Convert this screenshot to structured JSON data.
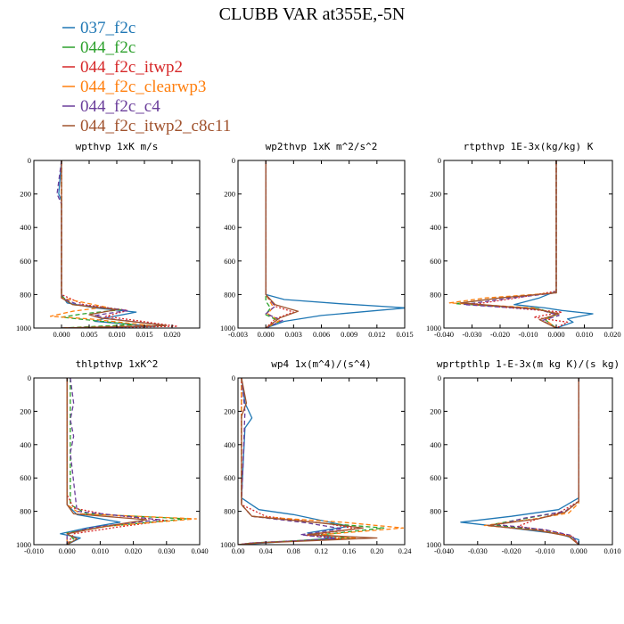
{
  "figure": {
    "title": "CLUBB VAR at355E,-5N"
  },
  "legend": [
    {
      "name": "037_f2c",
      "color": "#1f77b4",
      "dash": "solid"
    },
    {
      "name": "044_f2c",
      "color": "#2ca02c",
      "dash": "dash"
    },
    {
      "name": "044_f2c_itwp2",
      "color": "#d62728",
      "dash": "dot"
    },
    {
      "name": "044_f2c_clearwp3",
      "color": "#ff7f0e",
      "dash": "dash"
    },
    {
      "name": "044_f2c_c4",
      "color": "#6a3d9a",
      "dash": "dash"
    },
    {
      "name": "044_f2c_itwp2_c8c11",
      "color": "#a0522d",
      "dash": "solid"
    }
  ],
  "chart_data": [
    {
      "type": "line",
      "title": "wpthvp  1xK m/s",
      "ylim": [
        1000,
        0
      ],
      "yticks": [
        "0",
        "200",
        "400",
        "600",
        "800",
        "1000"
      ],
      "xlim": [
        -0.005,
        0.025
      ],
      "xticks": [
        "0.000",
        "0.005",
        "0.010",
        "0.015",
        "0.020"
      ],
      "series": [
        {
          "name": "037_f2c",
          "x": [
            0.0,
            -0.0005,
            0.0,
            0.0,
            0.001,
            0.006,
            0.0135,
            0.008,
            0.006,
            0.017,
            0.0
          ],
          "y": [
            0,
            200,
            240,
            800,
            850,
            880,
            905,
            940,
            960,
            990,
            1000
          ]
        },
        {
          "name": "044_f2c",
          "x": [
            0.0,
            0.0,
            0.0,
            0.002,
            0.011,
            0.004,
            0.0,
            0.013,
            0.0
          ],
          "y": [
            0,
            250,
            810,
            860,
            890,
            915,
            935,
            980,
            1000
          ]
        },
        {
          "name": "044_f2c_itwp2",
          "x": [
            0.0,
            0.0,
            0.0,
            0.004,
            0.012,
            0.008,
            0.021,
            0.0
          ],
          "y": [
            0,
            400,
            800,
            860,
            895,
            930,
            990,
            1000
          ]
        },
        {
          "name": "044_f2c_clearwp3",
          "x": [
            0.0,
            0.0,
            0.0,
            0.008,
            0.002,
            -0.002,
            0.005,
            0.016,
            0.0
          ],
          "y": [
            0,
            250,
            820,
            875,
            900,
            930,
            945,
            985,
            1000
          ]
        },
        {
          "name": "044_f2c_c4",
          "x": [
            0.0,
            -0.0008,
            0.0,
            0.0,
            0.003,
            0.012,
            0.006,
            0.009,
            0.019,
            0.0
          ],
          "y": [
            0,
            200,
            260,
            820,
            860,
            895,
            925,
            945,
            985,
            1000
          ]
        },
        {
          "name": "044_f2c_itwp2_c8c11",
          "x": [
            0.0,
            0.0,
            0.002,
            0.01,
            0.005,
            0.007,
            0.019,
            0.0
          ],
          "y": [
            0,
            820,
            860,
            890,
            920,
            940,
            985,
            1000
          ]
        }
      ]
    },
    {
      "type": "line",
      "title": "wp2thvp  1xK m^2/s^2",
      "ylim": [
        1000,
        0
      ],
      "yticks": [
        "0",
        "200",
        "400",
        "600",
        "800",
        "1000"
      ],
      "xlim": [
        -0.003,
        0.015
      ],
      "xticks": [
        "-0.003",
        "0.000",
        "0.003",
        "0.006",
        "0.009",
        "0.012",
        "0.015"
      ],
      "series": [
        {
          "name": "037_f2c",
          "x": [
            0.0,
            0.0,
            0.0,
            0.002,
            0.008,
            0.0152,
            0.006,
            0.002,
            0.0
          ],
          "y": [
            0,
            700,
            800,
            830,
            855,
            880,
            925,
            960,
            1000
          ]
        },
        {
          "name": "044_f2c",
          "x": [
            0.0,
            0.0,
            0.0,
            0.0005,
            0.0,
            0.0015,
            0.0
          ],
          "y": [
            0,
            780,
            840,
            880,
            920,
            960,
            1000
          ]
        },
        {
          "name": "044_f2c_itwp2",
          "x": [
            0.0,
            0.0,
            0.001,
            0.003,
            0.001,
            0.0
          ],
          "y": [
            0,
            800,
            870,
            905,
            945,
            1000
          ]
        },
        {
          "name": "044_f2c_clearwp3",
          "x": [
            0.0,
            0.0,
            0.0008,
            0.0002,
            0.0015,
            0.0
          ],
          "y": [
            0,
            800,
            875,
            915,
            955,
            1000
          ]
        },
        {
          "name": "044_f2c_c4",
          "x": [
            0.0,
            0.0,
            0.0,
            0.001,
            0.0,
            0.0018,
            0.0
          ],
          "y": [
            0,
            150,
            800,
            870,
            915,
            955,
            1000
          ]
        },
        {
          "name": "044_f2c_itwp2_c8c11",
          "x": [
            0.0,
            0.0,
            0.001,
            0.0035,
            0.0015,
            0.0
          ],
          "y": [
            0,
            800,
            860,
            900,
            940,
            1000
          ]
        }
      ]
    },
    {
      "type": "line",
      "title": "rtpthvp  1E-3x(kg/kg) K",
      "ylim": [
        1000,
        0
      ],
      "yticks": [
        "0",
        "200",
        "400",
        "600",
        "800",
        "1000"
      ],
      "xlim": [
        -0.04,
        0.02
      ],
      "xticks": [
        "-0.040",
        "-0.030",
        "-0.020",
        "-0.010",
        "0.000",
        "0.010",
        "0.020"
      ],
      "series": [
        {
          "name": "037_f2c",
          "x": [
            0.0,
            0.0,
            -0.006,
            -0.015,
            -0.004,
            0.002,
            0.013,
            0.004,
            0.006,
            0.0
          ],
          "y": [
            0,
            780,
            820,
            860,
            880,
            895,
            915,
            945,
            965,
            1000
          ]
        },
        {
          "name": "044_f2c",
          "x": [
            0.0,
            0.0,
            -0.02,
            -0.036,
            -0.006,
            0.0,
            -0.004,
            0.0
          ],
          "y": [
            0,
            790,
            820,
            855,
            885,
            920,
            950,
            1000
          ]
        },
        {
          "name": "044_f2c_itwp2",
          "x": [
            0.0,
            0.0,
            -0.014,
            -0.03,
            -0.012,
            0.002,
            -0.008,
            0.004,
            0.0
          ],
          "y": [
            0,
            780,
            820,
            860,
            885,
            905,
            935,
            965,
            1000
          ]
        },
        {
          "name": "044_f2c_clearwp3",
          "x": [
            0.0,
            0.0,
            -0.025,
            -0.038,
            -0.008,
            0.0,
            -0.004,
            0.0
          ],
          "y": [
            0,
            790,
            820,
            850,
            880,
            915,
            950,
            1000
          ]
        },
        {
          "name": "044_f2c_c4",
          "x": [
            0.0,
            0.0,
            -0.018,
            -0.033,
            -0.006,
            0.001,
            -0.005,
            0.0
          ],
          "y": [
            0,
            790,
            825,
            860,
            890,
            925,
            955,
            1000
          ]
        },
        {
          "name": "044_f2c_itwp2_c8c11",
          "x": [
            0.0,
            0.0,
            -0.02,
            -0.034,
            -0.008,
            0.001,
            -0.006,
            0.0
          ],
          "y": [
            0,
            790,
            820,
            850,
            885,
            915,
            950,
            1000
          ]
        }
      ]
    },
    {
      "type": "line",
      "title": "thlpthvp  1xK^2",
      "ylim": [
        1000,
        0
      ],
      "yticks": [
        "0",
        "200",
        "400",
        "600",
        "800",
        "1000"
      ],
      "xlim": [
        -0.01,
        0.04
      ],
      "xticks": [
        "-0.010",
        "0.000",
        "0.010",
        "0.020",
        "0.030",
        "0.040"
      ],
      "series": [
        {
          "name": "037_f2c",
          "x": [
            0.0,
            0.0,
            0.0,
            0.003,
            0.016,
            0.006,
            -0.002,
            0.004,
            0.0
          ],
          "y": [
            0,
            600,
            760,
            820,
            865,
            900,
            935,
            960,
            1000
          ]
        },
        {
          "name": "044_f2c",
          "x": [
            0.001,
            0.001,
            0.001,
            0.006,
            0.036,
            0.012,
            0.0,
            0.002,
            0.0
          ],
          "y": [
            0,
            300,
            760,
            815,
            845,
            890,
            930,
            965,
            1000
          ]
        },
        {
          "name": "044_f2c_itwp2",
          "x": [
            0.0,
            0.0,
            0.002,
            0.012,
            0.03,
            0.015,
            0.002,
            0.0
          ],
          "y": [
            0,
            700,
            780,
            820,
            855,
            895,
            935,
            1000
          ]
        },
        {
          "name": "044_f2c_clearwp3",
          "x": [
            0.0,
            0.0,
            0.004,
            0.039,
            0.012,
            0.0,
            0.0
          ],
          "y": [
            0,
            760,
            815,
            845,
            890,
            935,
            1000
          ]
        },
        {
          "name": "044_f2c_c4",
          "x": [
            0.001,
            0.002,
            0.001,
            0.002,
            0.001,
            0.003,
            0.028,
            0.008,
            0.0,
            0.0
          ],
          "y": [
            0,
            150,
            250,
            350,
            450,
            800,
            850,
            895,
            935,
            1000
          ]
        },
        {
          "name": "044_f2c_itwp2_c8c11",
          "x": [
            0.0,
            0.0,
            0.002,
            0.024,
            0.01,
            0.0,
            0.003,
            0.0
          ],
          "y": [
            0,
            760,
            815,
            850,
            895,
            935,
            965,
            1000
          ]
        }
      ]
    },
    {
      "type": "line",
      "title": "wp4  1x(m^4)/(s^4)",
      "ylim": [
        1000,
        0
      ],
      "yticks": [
        "0",
        "200",
        "400",
        "600",
        "800",
        "1000"
      ],
      "xlim": [
        0.0,
        0.24
      ],
      "xticks": [
        "0.00",
        "0.04",
        "0.08",
        "0.12",
        "0.16",
        "0.20",
        "0.24"
      ],
      "series": [
        {
          "name": "037_f2c",
          "x": [
            0.005,
            0.01,
            0.02,
            0.01,
            0.005,
            0.03,
            0.08,
            0.16,
            0.1,
            0.14,
            0.04,
            0.0
          ],
          "y": [
            0,
            150,
            240,
            300,
            720,
            790,
            820,
            890,
            930,
            960,
            990,
            1000
          ]
        },
        {
          "name": "044_f2c",
          "x": [
            0.005,
            0.005,
            0.02,
            0.12,
            0.21,
            0.12,
            0.16,
            0.02,
            0.0
          ],
          "y": [
            0,
            760,
            830,
            870,
            900,
            940,
            960,
            990,
            1000
          ]
        },
        {
          "name": "044_f2c_itwp2",
          "x": [
            0.005,
            0.005,
            0.04,
            0.13,
            0.17,
            0.1,
            0.16,
            0.02,
            0.0
          ],
          "y": [
            0,
            760,
            830,
            875,
            905,
            945,
            965,
            990,
            1000
          ]
        },
        {
          "name": "044_f2c_clearwp3",
          "x": [
            0.005,
            0.005,
            0.02,
            0.15,
            0.238,
            0.12,
            0.17,
            0.02,
            0.0
          ],
          "y": [
            0,
            760,
            830,
            865,
            900,
            940,
            960,
            990,
            1000
          ]
        },
        {
          "name": "044_f2c_c4",
          "x": [
            0.005,
            0.01,
            0.005,
            0.02,
            0.1,
            0.15,
            0.09,
            0.14,
            0.02,
            0.0
          ],
          "y": [
            0,
            200,
            760,
            830,
            870,
            905,
            940,
            965,
            990,
            1000
          ]
        },
        {
          "name": "044_f2c_itwp2_c8c11",
          "x": [
            0.005,
            0.012,
            0.005,
            0.005,
            0.02,
            0.12,
            0.18,
            0.1,
            0.2,
            0.03,
            0.0
          ],
          "y": [
            0,
            150,
            230,
            760,
            830,
            870,
            900,
            940,
            960,
            990,
            1000
          ]
        }
      ]
    },
    {
      "type": "line",
      "title": "wprtpthlp  1-E-3x(m kg K)/(s kg)",
      "ylim": [
        1000,
        0
      ],
      "yticks": [
        "0",
        "200",
        "400",
        "600",
        "800",
        "1000"
      ],
      "xlim": [
        -0.04,
        0.01
      ],
      "xticks": [
        "-0.040",
        "-0.030",
        "-0.020",
        "-0.010",
        "0.000",
        "0.010"
      ],
      "series": [
        {
          "name": "037_f2c",
          "x": [
            0.0,
            0.0,
            -0.006,
            -0.02,
            -0.035,
            -0.02,
            -0.006,
            0.0,
            0.0
          ],
          "y": [
            0,
            720,
            790,
            830,
            865,
            900,
            935,
            970,
            1000
          ]
        },
        {
          "name": "044_f2c",
          "x": [
            0.0,
            0.0,
            -0.004,
            -0.015,
            -0.026,
            -0.012,
            -0.003,
            0.0
          ],
          "y": [
            0,
            740,
            800,
            840,
            880,
            910,
            945,
            1000
          ]
        },
        {
          "name": "044_f2c_itwp2",
          "x": [
            0.0,
            0.0,
            -0.006,
            -0.013,
            -0.018,
            -0.008,
            -0.002,
            0.0
          ],
          "y": [
            0,
            740,
            810,
            850,
            890,
            920,
            950,
            1000
          ]
        },
        {
          "name": "044_f2c_clearwp3",
          "x": [
            0.0,
            0.0,
            -0.003,
            -0.013,
            -0.028,
            -0.012,
            -0.002,
            0.0
          ],
          "y": [
            0,
            750,
            810,
            845,
            885,
            915,
            950,
            1000
          ]
        },
        {
          "name": "044_f2c_c4",
          "x": [
            0.0,
            0.0,
            -0.004,
            -0.016,
            -0.024,
            -0.01,
            -0.002,
            0.0
          ],
          "y": [
            0,
            740,
            800,
            840,
            880,
            910,
            945,
            1000
          ]
        },
        {
          "name": "044_f2c_itwp2_c8c11",
          "x": [
            0.0,
            0.0,
            -0.004,
            -0.012,
            -0.027,
            -0.012,
            -0.003,
            0.0
          ],
          "y": [
            0,
            740,
            805,
            845,
            885,
            915,
            950,
            1000
          ]
        }
      ]
    }
  ]
}
